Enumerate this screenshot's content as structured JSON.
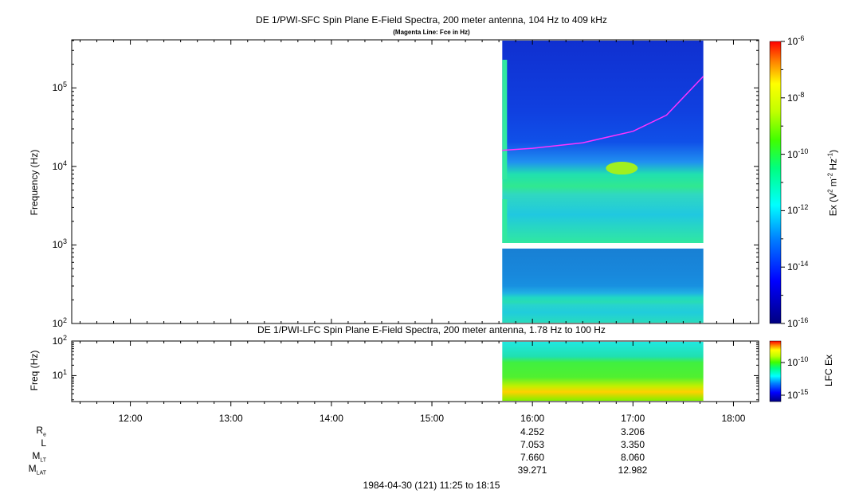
{
  "chart_data": [
    {
      "type": "heatmap",
      "title": "DE 1/PWI-SFC  Spin Plane E-Field Spectra, 200 meter antenna, 104 Hz to 409 kHz",
      "subtitle": "(Magenta Line: Fce in Hz)",
      "ylabel": "Frequency (Hz)",
      "yscale": "log",
      "ylim": [
        100,
        409000
      ],
      "yticks": [
        {
          "base": "10",
          "exp": "2"
        },
        {
          "base": "10",
          "exp": "3"
        },
        {
          "base": "10",
          "exp": "4"
        },
        {
          "base": "10",
          "exp": "5"
        }
      ],
      "colorbar": {
        "label_main": "Ex (V",
        "label_sup1": "2",
        "label_mid": " m",
        "label_sup2": "-2",
        "label_mid2": " Hz",
        "label_sup3": "-1",
        "label_end": ")",
        "scale": "log",
        "range": [
          1e-16,
          1e-06
        ],
        "ticks": [
          {
            "base": "10",
            "exp": "-6"
          },
          {
            "base": "10",
            "exp": "-8"
          },
          {
            "base": "10",
            "exp": "-10"
          },
          {
            "base": "10",
            "exp": "-12"
          },
          {
            "base": "10",
            "exp": "-14"
          },
          {
            "base": "10",
            "exp": "-16"
          }
        ]
      },
      "data_coverage_time": [
        "15:42",
        "17:42"
      ],
      "fce_line": {
        "color": "#ff33ff",
        "time": [
          "15:42",
          "16:00",
          "16:30",
          "17:00",
          "17:20",
          "17:42"
        ],
        "freq_hz": [
          16000,
          17000,
          20000,
          28000,
          45000,
          140000
        ]
      }
    },
    {
      "type": "heatmap",
      "title": "DE 1/PWI-LFC  Spin Plane E-Field Spectra, 200 meter antenna, 1.78 Hz to 100 Hz",
      "ylabel": "Freq (Hz)",
      "yscale": "log",
      "ylim": [
        1.78,
        100
      ],
      "yticks": [
        {
          "base": "10",
          "exp": "1"
        },
        {
          "base": "10",
          "exp": "2"
        }
      ],
      "colorbar": {
        "label": "LFC Ex",
        "ticks": [
          {
            "base": "10",
            "exp": "-10"
          },
          {
            "base": "10",
            "exp": "-15"
          }
        ]
      },
      "data_coverage_time": [
        "15:42",
        "17:42"
      ]
    }
  ],
  "xaxis": {
    "range": [
      "11:25",
      "18:15"
    ],
    "ticks": [
      "12:00",
      "13:00",
      "14:00",
      "15:00",
      "16:00",
      "17:00",
      "18:00"
    ]
  },
  "ephemeris": {
    "rows": [
      {
        "label": "R",
        "sub": "e",
        "values": [
          "4.252",
          "3.206"
        ]
      },
      {
        "label": "L",
        "sub": "",
        "values": [
          "7.053",
          "3.350"
        ]
      },
      {
        "label": "M",
        "sub": "LT",
        "values": [
          "7.660",
          "8.060"
        ]
      },
      {
        "label": "M",
        "sub": "LAT",
        "values": [
          "39.271",
          "12.982"
        ]
      }
    ],
    "times": [
      "16:00",
      "17:00"
    ]
  },
  "footer": "1984-04-30 (121) 11:25 to 18:15"
}
